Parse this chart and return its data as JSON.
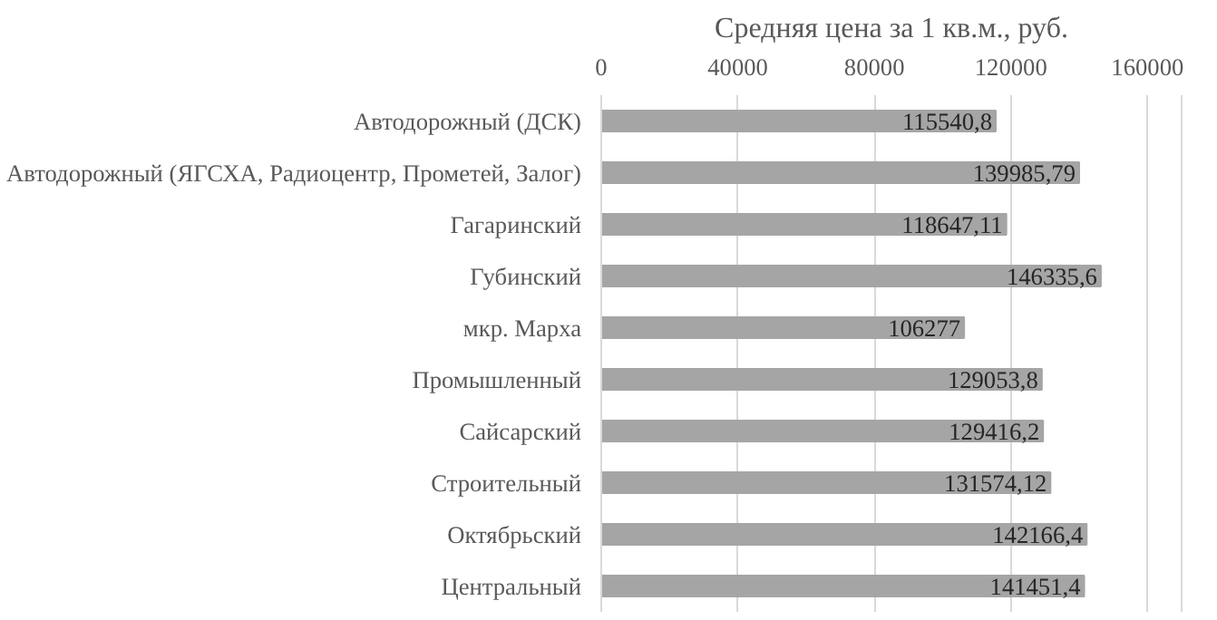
{
  "chart_data": {
    "type": "bar",
    "orientation": "horizontal",
    "title": "Средняя цена за 1 кв.м., руб.",
    "categories": [
      "Автодорожный (ДСК)",
      "Автодорожный (ЯГСХА, Радиоцентр, Прометей, Залог)",
      "Гагаринский",
      "Губинский",
      "мкр. Марха",
      "Промышленный",
      "Сайсарский",
      "Строительный",
      "Октябрьский",
      "Центральный"
    ],
    "values": [
      115540.8,
      139985.79,
      118647.11,
      146335.6,
      106277,
      129053.8,
      129416.2,
      131574.12,
      142166.4,
      141451.4
    ],
    "value_labels": [
      "115540,8",
      "139985,79",
      "118647,11",
      "146335,6",
      "106277",
      "129053,8",
      "129416,2",
      "131574,12",
      "142166,4",
      "141451,4"
    ],
    "color": "#a5a5a5",
    "xlim": [
      0,
      170000
    ],
    "xticks": [
      0,
      40000,
      80000,
      120000,
      160000
    ],
    "grid": "x"
  }
}
